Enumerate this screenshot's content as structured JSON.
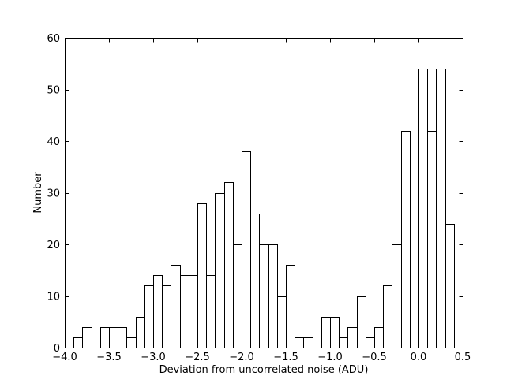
{
  "chart_data": {
    "type": "bar",
    "title": "",
    "xlabel": "Deviation from uncorrelated noise (ADU)",
    "ylabel": "Number",
    "xlim": [
      -4.0,
      0.5
    ],
    "ylim": [
      0,
      60
    ],
    "bin_width": 0.1,
    "bin_left_edges": [
      -3.9,
      -3.8,
      -3.7,
      -3.6,
      -3.5,
      -3.4,
      -3.3,
      -3.2,
      -3.1,
      -3.0,
      -2.9,
      -2.8,
      -2.7,
      -2.6,
      -2.5,
      -2.4,
      -2.3,
      -2.2,
      -2.1,
      -2.0,
      -1.9,
      -1.8,
      -1.7,
      -1.6,
      -1.5,
      -1.4,
      -1.3,
      -1.2,
      -1.1,
      -1.0,
      -0.9,
      -0.8,
      -0.7,
      -0.6,
      -0.5,
      -0.4,
      -0.3,
      -0.2,
      -0.1,
      0.0,
      0.1,
      0.2,
      0.3
    ],
    "values": [
      2,
      4,
      0,
      4,
      4,
      4,
      2,
      6,
      12,
      14,
      12,
      16,
      14,
      14,
      28,
      14,
      30,
      32,
      20,
      38,
      26,
      20,
      20,
      10,
      16,
      2,
      2,
      0,
      6,
      6,
      2,
      4,
      10,
      2,
      4,
      12,
      20,
      42,
      36,
      54,
      42,
      54,
      24
    ],
    "x_ticks": [
      -4.0,
      -3.5,
      -3.0,
      -2.5,
      -2.0,
      -1.5,
      -1.0,
      -0.5,
      0.0,
      0.5
    ],
    "x_tick_labels": [
      "−4.0",
      "−3.5",
      "−3.0",
      "−2.5",
      "−2.0",
      "−1.5",
      "−1.0",
      "−0.5",
      "0.0",
      "0.5"
    ],
    "y_ticks": [
      0,
      10,
      20,
      30,
      40,
      50,
      60
    ],
    "y_tick_labels": [
      "0",
      "10",
      "20",
      "30",
      "40",
      "50",
      "60"
    ],
    "grid": false,
    "legend": "none",
    "bar_fill": "#ffffff",
    "bar_edge": "#000000"
  }
}
